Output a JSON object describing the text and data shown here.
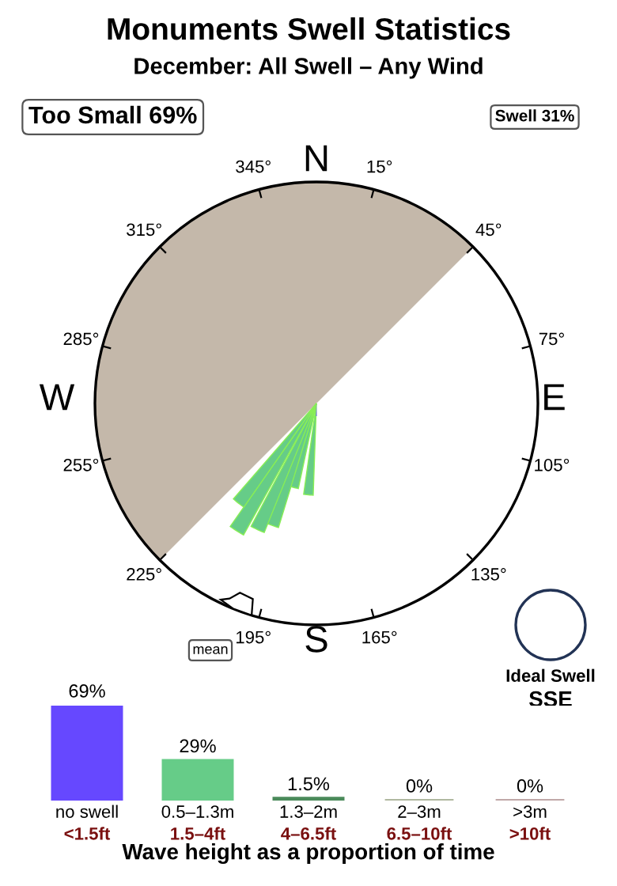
{
  "chart_data": [
    {
      "type": "other",
      "title": "Monuments Swell Statistics",
      "subtitle": "December: All Swell – Any Wind",
      "annotations": [
        "Too Small 69%",
        "Swell 31%",
        "N",
        "E",
        "S",
        "W",
        "15°",
        "45°",
        "75°",
        "105°",
        "135°",
        "165°",
        "195°",
        "225°",
        "255°",
        "285°",
        "315°",
        "345°",
        "mean",
        "Ideal Swell",
        "SSE"
      ]
    },
    {
      "type": "bar",
      "categories": [
        "no swell",
        "0.5–1.3m",
        "1.3–2m",
        "2–3m",
        ">3m"
      ],
      "values": [
        69,
        29,
        1.5,
        0,
        0
      ],
      "value_labels": [
        "69%",
        "29%",
        "1.5%",
        "0%",
        "0%"
      ],
      "colors": [
        "#6648ff",
        "#66cc88",
        "#4a8a5a",
        "#b0b8a0",
        "#c0a8a8"
      ],
      "xlabel": "Wave height as a proportion of time",
      "annotations": [
        "<1.5ft",
        "1.5–4ft",
        "4–6.5ft",
        "6.5–10ft",
        ">10ft"
      ]
    }
  ]
}
